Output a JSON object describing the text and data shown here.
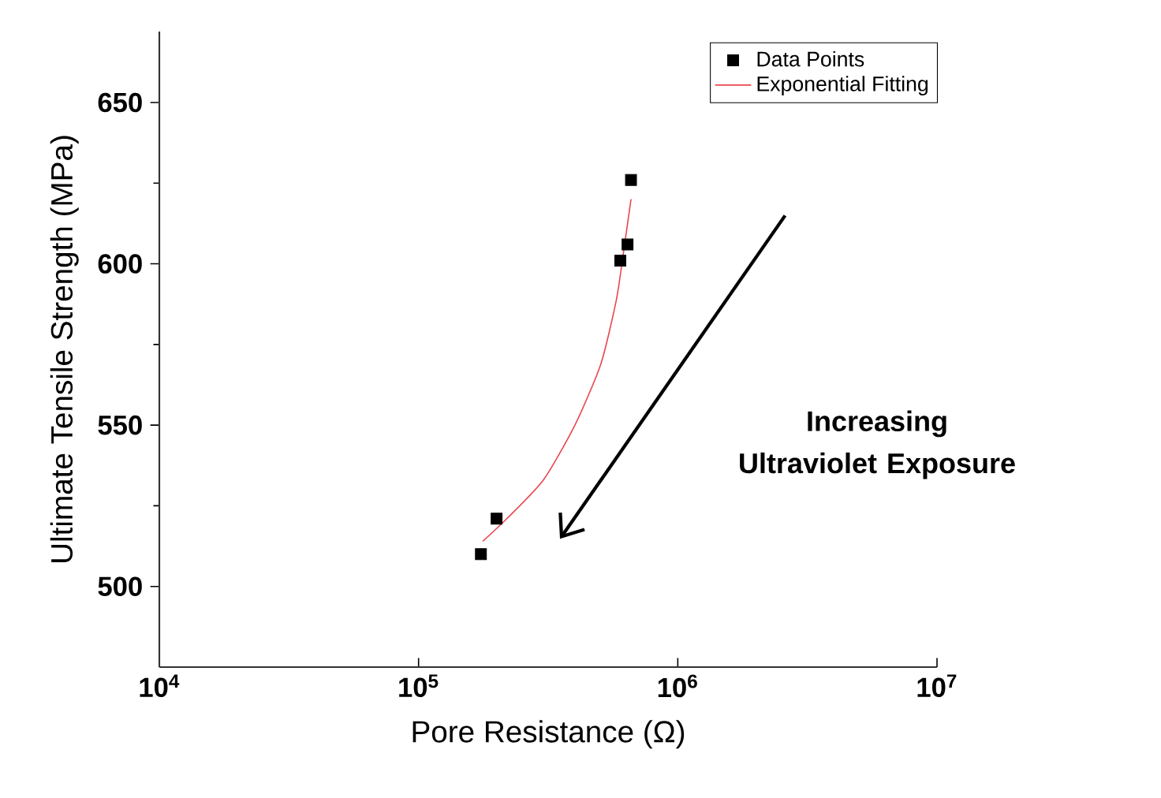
{
  "chart_data": {
    "type": "scatter",
    "xlabel": "Pore Resistance (Ω)",
    "ylabel": "Ultimate Tensile Strength (MPa)",
    "log": "x",
    "legend": "top right",
    "xlim": [
      10000,
      10000000
    ],
    "xticks": [
      {
        "value": 10000,
        "label": "10$^{4}$"
      },
      {
        "value": 100000,
        "label": "10$^{5}$"
      },
      {
        "value": 1000000,
        "label": "10$^{6}$"
      },
      {
        "value": 10000000,
        "label": "10$^{7}$"
      }
    ],
    "ylim": [
      475,
      672
    ],
    "yticks": [
      500,
      550,
      600,
      650
    ],
    "annotations": [
      "Increasing Ultraviolet Exposure"
    ],
    "series": [
      {
        "name": "Data Points",
        "marker": "square",
        "color": "#000000",
        "x": [
          174000,
          200000,
          600000,
          640000,
          660000
        ],
        "values": [
          510,
          521,
          601,
          606,
          626
        ]
      },
      {
        "name": "Exponential Fitting",
        "type": "line",
        "marker": "none",
        "color": "#e8474f",
        "x": [
          177000,
          219000,
          303000,
          401000,
          505000,
          580000,
          621000,
          660000
        ],
        "values": [
          514,
          521,
          533,
          550,
          569,
          589,
          605,
          620
        ]
      }
    ]
  }
}
